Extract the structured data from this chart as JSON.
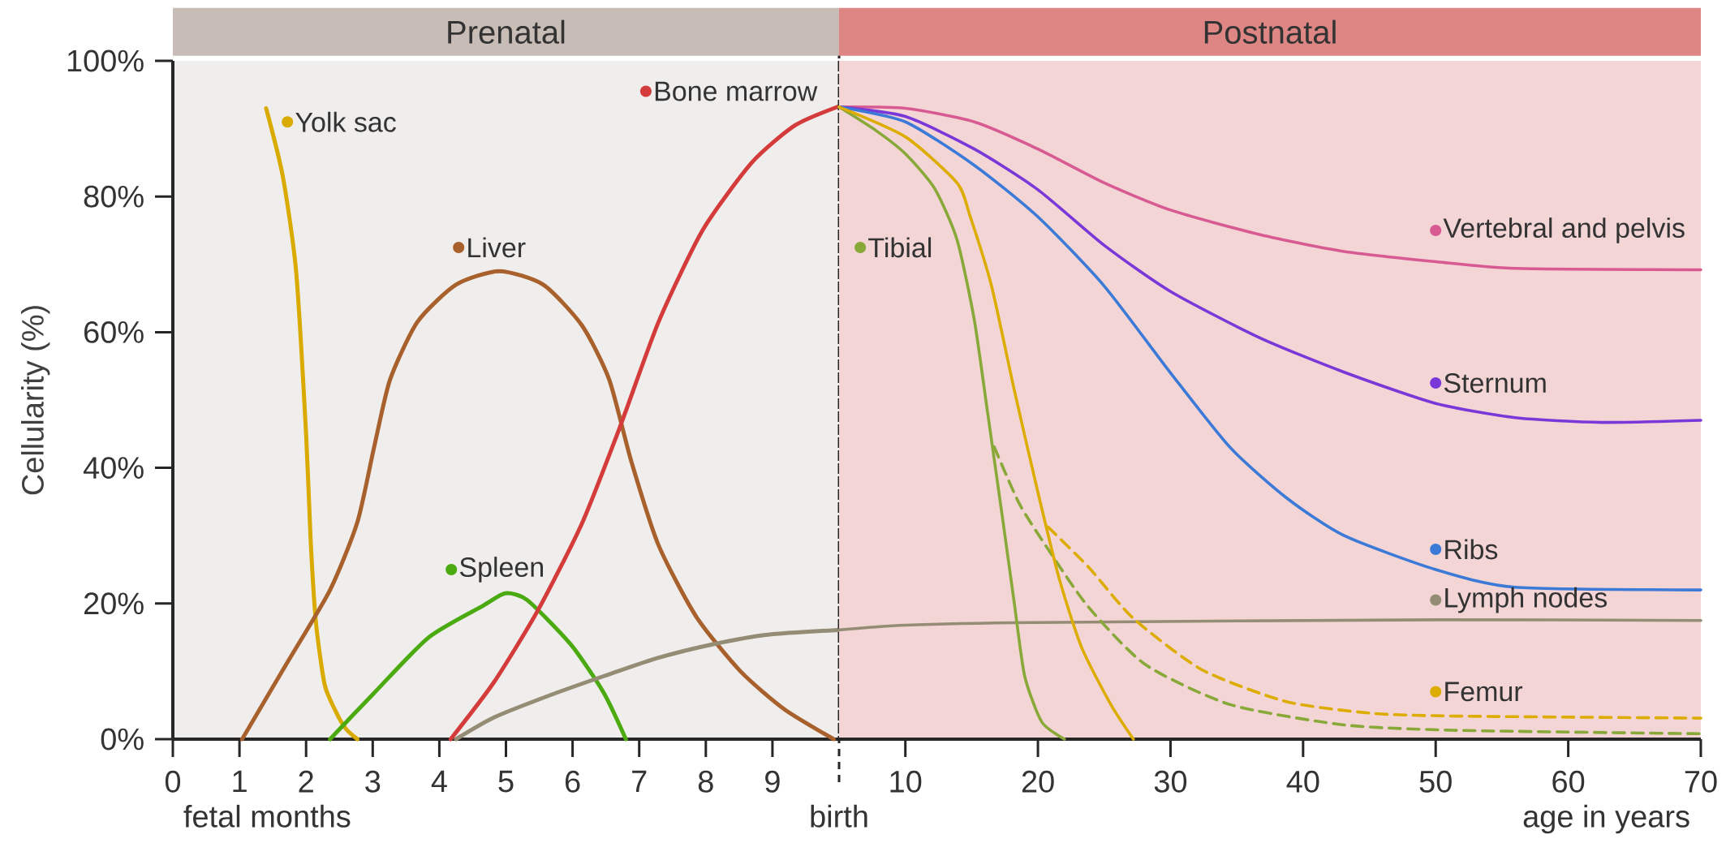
{
  "chart_data": [
    {
      "type": "line",
      "title": "Prenatal",
      "xlabel": "fetal months",
      "ylabel": "Cellularity (%)",
      "xlim": [
        0,
        10
      ],
      "ylim": [
        0,
        100
      ],
      "xticks": [
        0,
        1,
        2,
        3,
        4,
        5,
        6,
        7,
        8,
        9
      ],
      "yticks": [
        {
          "value": 0,
          "label": "0%"
        },
        {
          "value": 20,
          "label": "20%"
        },
        {
          "value": 40,
          "label": "40%"
        },
        {
          "value": 60,
          "label": "60%"
        },
        {
          "value": 80,
          "label": "80%"
        },
        {
          "value": 100,
          "label": "100%"
        }
      ],
      "ref_lines": [
        {
          "axis": "x",
          "value": 10,
          "label": "birth",
          "line_style": "dashed"
        }
      ],
      "legend": "top",
      "series": [
        {
          "name": "Yolk sac",
          "color": "#d9aa00",
          "x": [
            1.4,
            1.65,
            1.85,
            2.0,
            2.07,
            2.15,
            2.28,
            2.45,
            2.6,
            2.77
          ],
          "values": [
            93,
            83,
            69,
            45,
            29,
            17,
            8,
            4,
            1.5,
            0
          ]
        },
        {
          "name": "Liver",
          "color": "#a8602c",
          "x": [
            1.04,
            1.7,
            2.36,
            2.77,
            3.02,
            3.26,
            3.67,
            4.25,
            4.9,
            5.56,
            6.14,
            6.55,
            6.88,
            7.29,
            7.86,
            8.52,
            9.18,
            9.92
          ],
          "values": [
            0,
            11,
            22,
            32,
            43,
            53,
            61.5,
            67,
            69,
            67,
            61,
            53,
            41,
            28.6,
            18,
            10,
            4.4,
            0
          ]
        },
        {
          "name": "Spleen",
          "color": "#4aaa10",
          "x": [
            2.36,
            3.02,
            3.84,
            4.66,
            4.99,
            5.32,
            5.97,
            6.47,
            6.8
          ],
          "values": [
            0,
            6.8,
            15,
            19.7,
            21.5,
            20.5,
            14,
            6.8,
            0
          ]
        },
        {
          "name": "Bone marrow",
          "color": "#d43c3c",
          "x": [
            4.17,
            4.82,
            5.48,
            6.14,
            6.71,
            7.29,
            7.95,
            8.69,
            9.34,
            10
          ],
          "values": [
            0,
            8.4,
            19,
            31.8,
            46,
            61.5,
            75,
            85,
            90.5,
            93.3
          ]
        },
        {
          "color": "#948c74",
          "x": [
            4.25,
            4.82,
            5.64,
            6.47,
            7.29,
            8.11,
            8.93,
            10
          ],
          "values": [
            0,
            3.2,
            6.4,
            9.3,
            12,
            14,
            15.4,
            16.1
          ]
        }
      ]
    },
    {
      "type": "line",
      "title": "Postnatal",
      "xlabel": "age in years",
      "xlim": [
        5,
        70
      ],
      "ylim": [
        0,
        100
      ],
      "xticks": [
        10,
        20,
        30,
        40,
        50,
        60,
        70
      ],
      "tick_labels": "x",
      "legend": "right",
      "series": [
        {
          "name": "Vertebral and pelvis",
          "color": "#d85a92",
          "x": [
            5,
            10,
            15.2,
            20,
            25,
            30,
            36.7,
            43.1,
            50,
            56,
            70
          ],
          "values": [
            93.2,
            93,
            91,
            87,
            82,
            78,
            74.4,
            71.9,
            70.4,
            69.4,
            69.2
          ]
        },
        {
          "name": "Sternum",
          "color": "#7a38d8",
          "x": [
            5,
            10,
            15.2,
            20,
            25,
            30,
            36.7,
            43.1,
            50,
            56,
            62.5,
            70
          ],
          "values": [
            93.2,
            91.8,
            87,
            81,
            72.8,
            66,
            59.2,
            54.1,
            49.5,
            47.4,
            46.7,
            47
          ]
        },
        {
          "name": "Ribs",
          "color": "#3c7ad8",
          "x": [
            5,
            10,
            15.2,
            20,
            25,
            30,
            34.5,
            38.8,
            43.1,
            50,
            56,
            70
          ],
          "values": [
            93.2,
            91,
            84.6,
            77,
            66.8,
            54,
            43,
            35.5,
            30,
            25,
            22.4,
            22
          ]
        },
        {
          "name": "Lymph nodes",
          "color": "#948c74",
          "x": [
            5,
            10,
            20,
            50,
            70
          ],
          "values": [
            16.1,
            16.8,
            17.2,
            17.6,
            17.5
          ]
        },
        {
          "name": "Tibial",
          "color": "#88a838",
          "x": [
            5,
            7.8,
            10,
            12.2,
            13.9,
            15.2,
            16.2,
            17.3,
            18.2,
            19,
            20.3,
            22
          ],
          "values": [
            93.2,
            89.7,
            86.3,
            81.2,
            73.6,
            61.8,
            48.2,
            33,
            20.3,
            9.3,
            2.5,
            0
          ]
        },
        {
          "color": "#88a838",
          "line_style": "dashed",
          "x": [
            16.7,
            18.6,
            20.8,
            23.8,
            28.1,
            34.5,
            43.1,
            51.7,
            70
          ],
          "values": [
            43.1,
            34.7,
            27.9,
            19.5,
            11,
            5.1,
            2.1,
            1.3,
            0.8
          ]
        },
        {
          "name": "Femur",
          "color": "#dcac00",
          "x": [
            5,
            10,
            13.9,
            14.9,
            16.5,
            18.2,
            19.9,
            21.6,
            23.3,
            25.5,
            27.2
          ],
          "values": [
            93.2,
            88.8,
            82,
            77,
            66.8,
            51.6,
            37.2,
            23.7,
            13.5,
            5.1,
            0
          ]
        },
        {
          "color": "#dcac00",
          "line_style": "dashed",
          "x": [
            20.75,
            23.8,
            27.2,
            32.4,
            38.8,
            45.3,
            51.7,
            70
          ],
          "values": [
            31.3,
            25.4,
            17.8,
            10.2,
            5.5,
            3.8,
            3.4,
            3.1
          ]
        }
      ]
    }
  ]
}
